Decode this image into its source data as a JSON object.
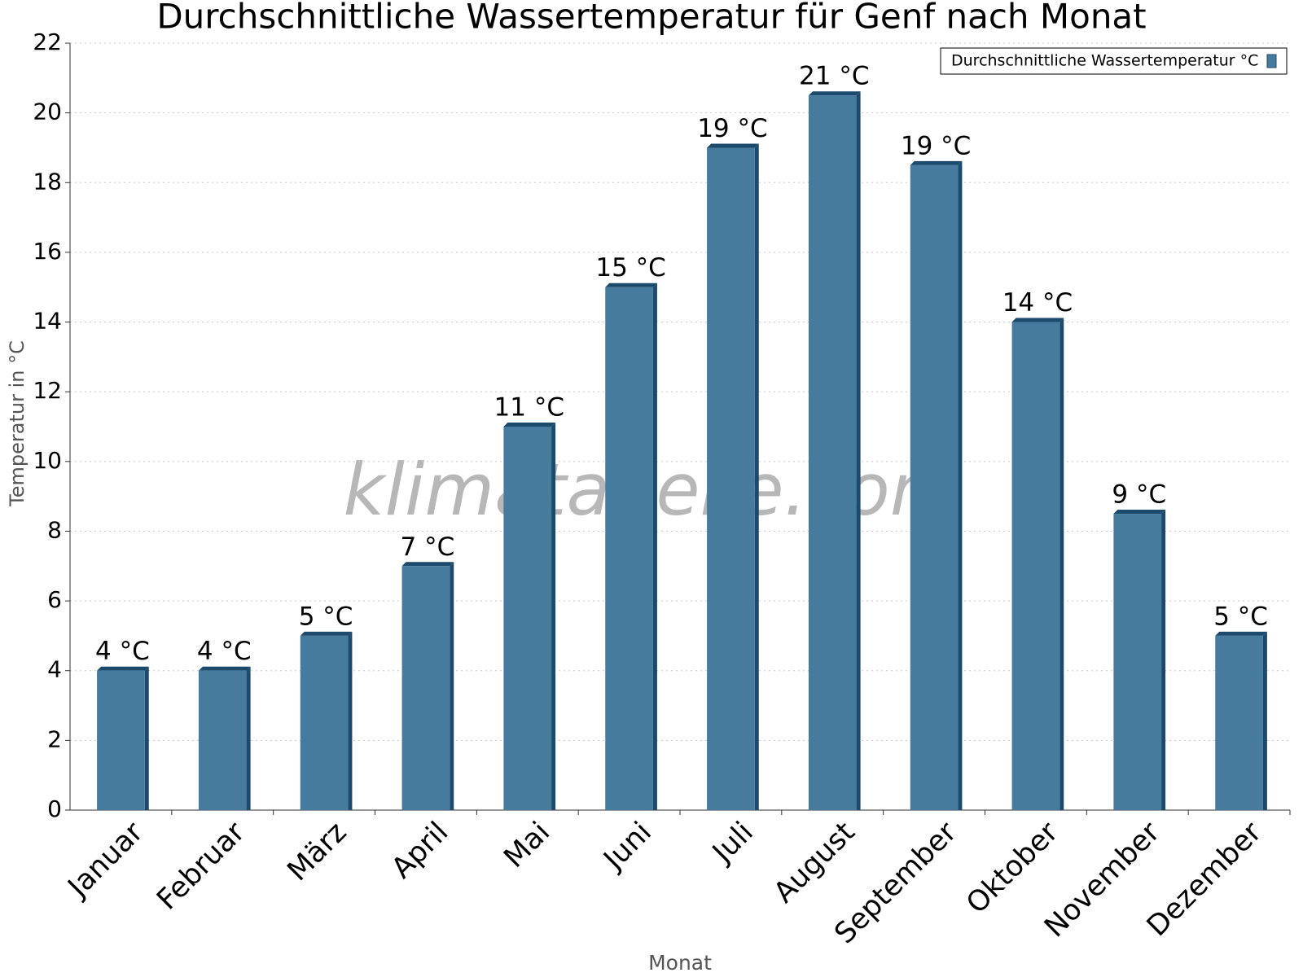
{
  "chart_data": {
    "type": "bar",
    "title": "Durchschnittliche Wassertemperatur für Genf nach Monat",
    "x_label": "Monat",
    "y_label": "Temperatur in °C",
    "watermark": "klimatabelle.com",
    "categories": [
      "Januar",
      "Februar",
      "März",
      "April",
      "Mai",
      "Juni",
      "Juli",
      "August",
      "September",
      "Oktober",
      "November",
      "Dezember"
    ],
    "series": [
      {
        "name": "Durchschnittliche Wassertemperatur °C",
        "color": "#467b9e",
        "values": [
          4,
          4,
          5,
          7,
          11,
          15,
          19,
          20.5,
          18.5,
          14,
          8.5,
          5
        ],
        "value_labels": [
          "4 °C",
          "4 °C",
          "5 °C",
          "7 °C",
          "11 °C",
          "15 °C",
          "19 °C",
          "21 °C",
          "19 °C",
          "14 °C",
          "9 °C",
          "5 °C"
        ]
      }
    ],
    "ylim": [
      0,
      22
    ],
    "yticks": [
      0,
      2,
      4,
      6,
      8,
      10,
      12,
      14,
      16,
      18,
      20,
      22
    ],
    "grid": true,
    "legend": "top-right"
  }
}
